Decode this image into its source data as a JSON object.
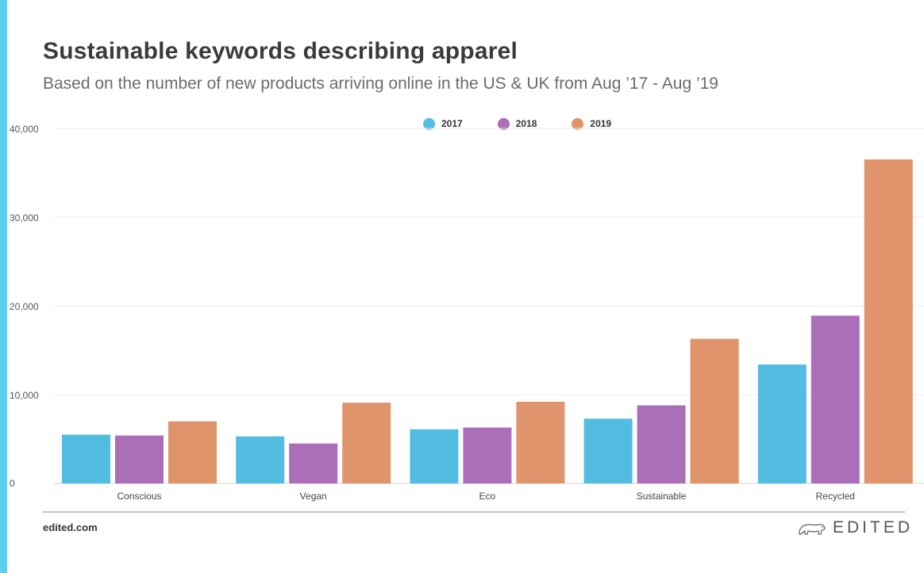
{
  "header": {
    "title": "Sustainable keywords describing apparel",
    "subtitle": "Based on the number of new products arriving online in the US & UK from Aug ’17 - Aug ’19"
  },
  "footer": {
    "source": "edited.com",
    "brand": "EDITED",
    "brand_icon": "polar-bear-logo"
  },
  "colors": {
    "accent_bar": "#5dcdf0",
    "s2017": "#52bde0",
    "s2018": "#ab6fb9",
    "s2019": "#df946b"
  },
  "chart_data": {
    "type": "bar",
    "title": "Sustainable keywords describing apparel",
    "subtitle": "Based on the number of new products arriving online in the US & UK from Aug ’17 - Aug ’19",
    "xlabel": "",
    "ylabel": "",
    "ylim": [
      0,
      40000
    ],
    "yticks": [
      0,
      10000,
      20000,
      30000,
      40000
    ],
    "ytick_labels": [
      "0",
      "10,000",
      "20,000",
      "30,000",
      "40,000"
    ],
    "grid": true,
    "legend_position": "top-center",
    "categories": [
      "Conscious",
      "Vegan",
      "Eco",
      "Sustainable",
      "Recycled"
    ],
    "series": [
      {
        "name": "2017",
        "color": "#52bde0",
        "values": [
          5500,
          5300,
          6100,
          7300,
          13400
        ]
      },
      {
        "name": "2018",
        "color": "#ab6fb9",
        "values": [
          5400,
          4500,
          6300,
          8800,
          18900
        ]
      },
      {
        "name": "2019",
        "color": "#df946b",
        "values": [
          7000,
          9100,
          9200,
          16300,
          36500
        ]
      }
    ]
  }
}
